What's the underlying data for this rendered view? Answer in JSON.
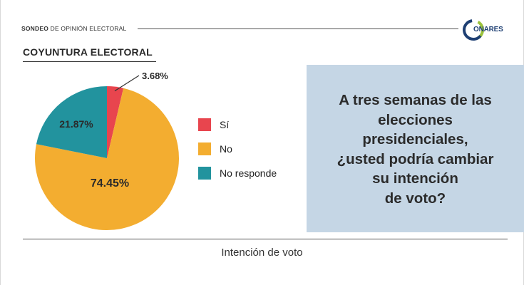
{
  "header": {
    "title_bold": "SONDEO",
    "title_rest": " DE OPINIÓN ELECTORAL",
    "logo_text": "ONARES"
  },
  "section": {
    "title": "COYUNTURA ELECTORAL"
  },
  "question": {
    "text": "A tres semanas de las\nelecciones\npresidenciales,\n¿usted podría cambiar\nsu intención\nde voto?"
  },
  "footer": {
    "label": "Intención de voto"
  },
  "colors": {
    "si": "#e8454e",
    "no": "#f3ad30",
    "no_responde": "#22939e",
    "box": "#c5d6e5",
    "logo_blue": "#1e3f73",
    "logo_green": "#9bc23c"
  },
  "icons": {
    "logo": "conares-logo"
  },
  "chart_data": {
    "type": "pie",
    "series": [
      {
        "name": "Sí",
        "value": 3.68,
        "label": "3.68%",
        "color": "#e8454e"
      },
      {
        "name": "No",
        "value": 74.45,
        "label": "74.45%",
        "color": "#f3ad30"
      },
      {
        "name": "No responde",
        "value": 21.87,
        "label": "21.87%",
        "color": "#22939e"
      }
    ],
    "legend_placement": "right"
  }
}
